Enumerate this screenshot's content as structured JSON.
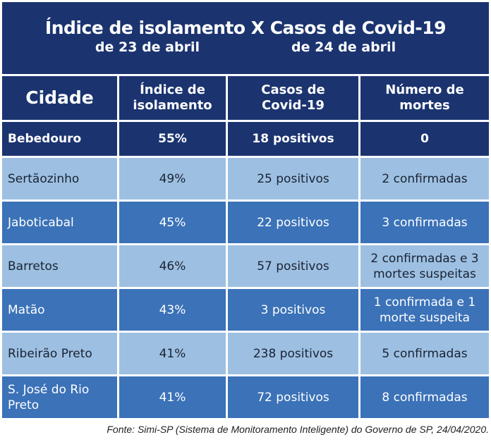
{
  "title": {
    "main": "Índice de isolamento X Casos de Covid-19",
    "date_left": "de 23 de abril",
    "date_right": "de 24 de abril"
  },
  "headers": [
    "Cidade",
    "Índice de isolamento",
    "Casos de Covid-19",
    "Número de mortes"
  ],
  "rows": [
    [
      "Bebedouro",
      "55%",
      "18 positivos",
      "0"
    ],
    [
      "Sertãozinho",
      "49%",
      "25 positivos",
      "2 confirmadas"
    ],
    [
      "Jaboticabal",
      "45%",
      "22 positivos",
      "3 confirmadas"
    ],
    [
      "Barretos",
      "46%",
      "57 positivos",
      "2 confirmadas e 3 mortes suspeitas"
    ],
    [
      "Matão",
      "43%",
      "3 positivos",
      "1 confirmada e 1 morte suspeita"
    ],
    [
      "Ribeirão Preto",
      "41%",
      "238 positivos",
      "5 confirmadas"
    ],
    [
      "S. José do Rio Preto",
      "41%",
      "72 positivos",
      "8 confirmadas"
    ]
  ],
  "footnote": "Fonte: Simi-SP (Sistema de Monitoramento Inteligente) do Governo de SP, 24/04/2020.",
  "colors": {
    "dark": "#1b3470",
    "light": "#9dc0e2",
    "mid": "#3b72b8"
  }
}
